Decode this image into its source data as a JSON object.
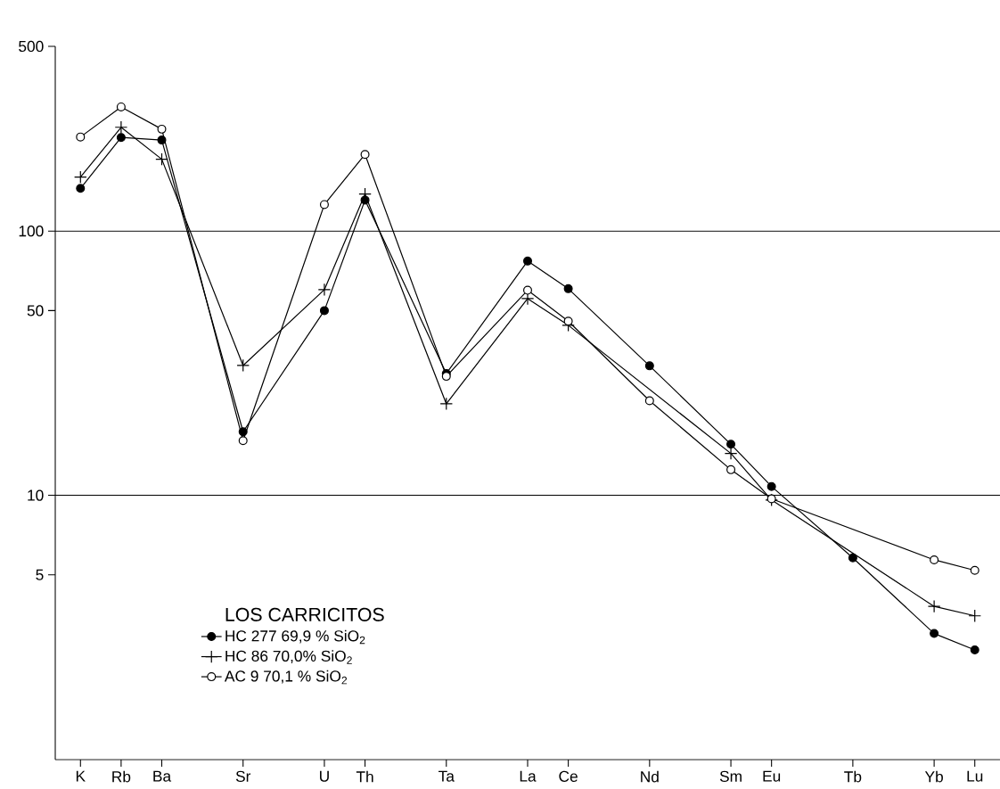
{
  "chart_data": {
    "type": "line",
    "categories": [
      "K",
      "Rb",
      "Ba",
      null,
      "Sr",
      null,
      "U",
      "Th",
      null,
      "Ta",
      null,
      "La",
      "Ce",
      null,
      "Nd",
      null,
      "Sm",
      "Eu",
      null,
      "Tb",
      null,
      "Yb",
      "Lu"
    ],
    "series": [
      {
        "name": "HC 277   69,9 % SiO$_{2}$",
        "color": "#000000",
        "marker": "circle",
        "values": [
          145,
          226,
          221,
          null,
          17.4,
          null,
          50,
          131,
          null,
          28.9,
          null,
          77,
          60.5,
          null,
          30.9,
          null,
          15.6,
          10.8,
          null,
          5.8,
          null,
          3.0,
          2.6
        ]
      },
      {
        "name": "HC 86   70,0% SiO$_{2}$",
        "color": "#000000",
        "marker": "cross",
        "values": [
          160,
          247,
          187,
          null,
          31,
          null,
          60,
          138,
          null,
          22.2,
          null,
          55.5,
          44,
          null,
          null,
          null,
          14.4,
          9.6,
          null,
          null,
          null,
          3.8,
          3.5
        ]
      },
      {
        "name": "AC 9   70,1 % SiO$_{2}$",
        "color": "#000000",
        "marker": "circle",
        "values": [
          227,
          295,
          243,
          null,
          16.1,
          null,
          126,
          195,
          null,
          28.2,
          null,
          59.7,
          45.6,
          null,
          22.8,
          null,
          12.5,
          9.7,
          null,
          null,
          null,
          5.7,
          5.2
        ]
      }
    ],
    "legend_title": "LOS CARRICITOS",
    "legend": "bottom left",
    "log": "y",
    "ylim": [
      1,
      500
    ],
    "yticks": [
      5,
      10,
      50,
      100,
      500
    ],
    "ref_lines": [
      {
        "axis": "y",
        "value": 10
      },
      {
        "axis": "y",
        "value": 100
      }
    ],
    "line_style": "solid"
  }
}
